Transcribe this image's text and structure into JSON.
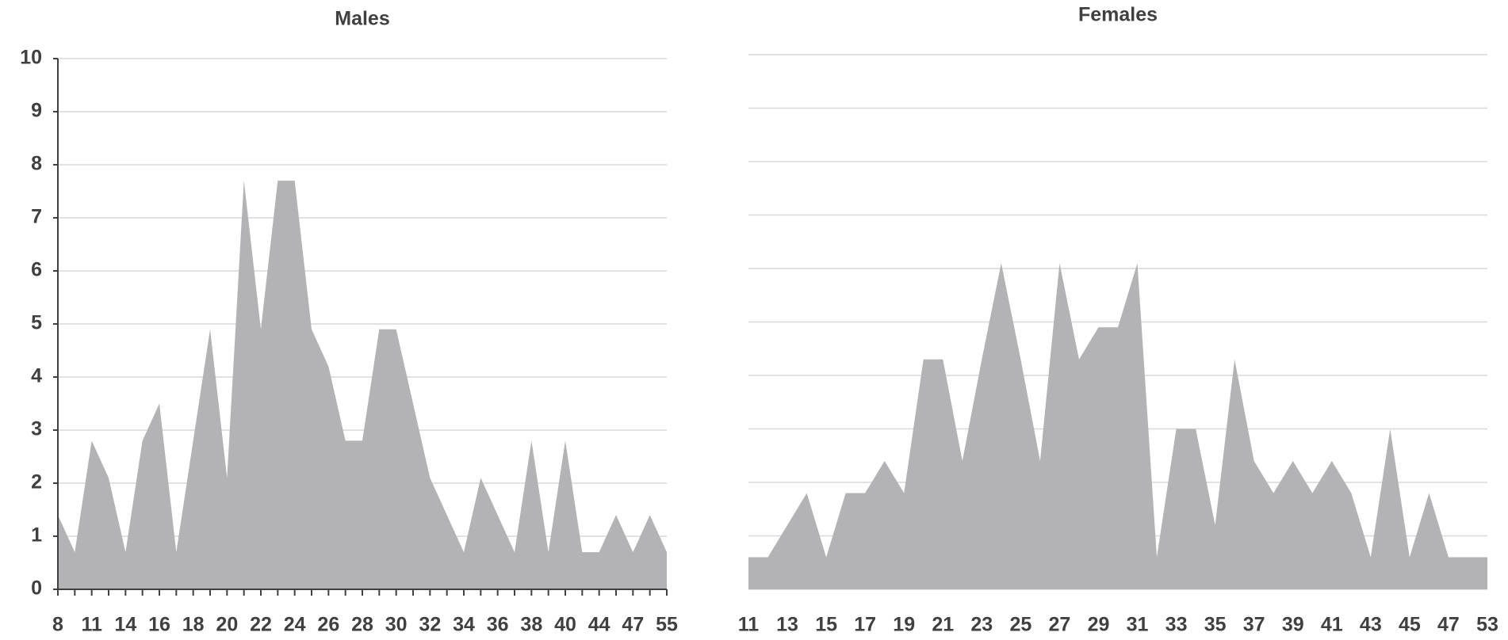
{
  "chart_data": [
    {
      "type": "area",
      "title": "Males",
      "categories": [
        "8",
        null,
        "11",
        null,
        "14",
        null,
        "16",
        null,
        "18",
        null,
        "20",
        null,
        "22",
        null,
        "24",
        null,
        "26",
        null,
        "28",
        null,
        "30",
        null,
        "32",
        null,
        "34",
        null,
        "36",
        null,
        "38",
        null,
        "40",
        null,
        "44",
        null,
        "47",
        null,
        "55"
      ],
      "values": [
        1.4,
        0.7,
        2.8,
        2.1,
        0.7,
        2.8,
        3.5,
        0.7,
        2.8,
        4.9,
        2.1,
        7.7,
        4.9,
        7.7,
        7.7,
        4.9,
        4.2,
        2.8,
        2.8,
        4.9,
        4.9,
        3.5,
        2.1,
        1.4,
        0.7,
        2.1,
        1.4,
        0.7,
        2.8,
        0.7,
        2.8,
        0.7,
        0.7,
        1.4,
        0.7,
        1.4,
        0.7
      ],
      "color": "#b3b3b5",
      "ylim": [
        0,
        10
      ],
      "yticks": [
        0,
        1,
        2,
        3,
        4,
        5,
        6,
        7,
        8,
        9,
        10
      ],
      "grid": true,
      "tick_labels": true,
      "axis_lines": true
    },
    {
      "type": "area",
      "title": "Females",
      "categories": [
        "11",
        null,
        "13",
        null,
        "15",
        null,
        "17",
        null,
        "19",
        null,
        "21",
        null,
        "23",
        null,
        "25",
        null,
        "27",
        null,
        "29",
        null,
        "31",
        null,
        "33",
        null,
        "35",
        null,
        "37",
        null,
        "39",
        null,
        "41",
        null,
        "43",
        null,
        "45",
        null,
        "47",
        null,
        "53"
      ],
      "values": [
        0.6,
        0.6,
        1.2,
        1.8,
        0.6,
        1.8,
        1.8,
        2.4,
        1.8,
        4.3,
        4.3,
        2.4,
        4.3,
        6.1,
        4.3,
        2.4,
        6.1,
        4.3,
        4.9,
        4.9,
        6.1,
        0.6,
        3.0,
        3.0,
        1.2,
        4.3,
        2.4,
        1.8,
        2.4,
        1.8,
        2.4,
        1.8,
        0.6,
        3.0,
        0.6,
        1.8,
        0.6,
        0.6,
        0.6
      ],
      "color": "#b3b3b5",
      "ylim": [
        0,
        10
      ],
      "yticks": [
        0,
        1,
        2,
        3,
        4,
        5,
        6,
        7,
        8,
        9,
        10
      ],
      "grid": true,
      "tick_labels": false,
      "axis_lines": false
    }
  ]
}
